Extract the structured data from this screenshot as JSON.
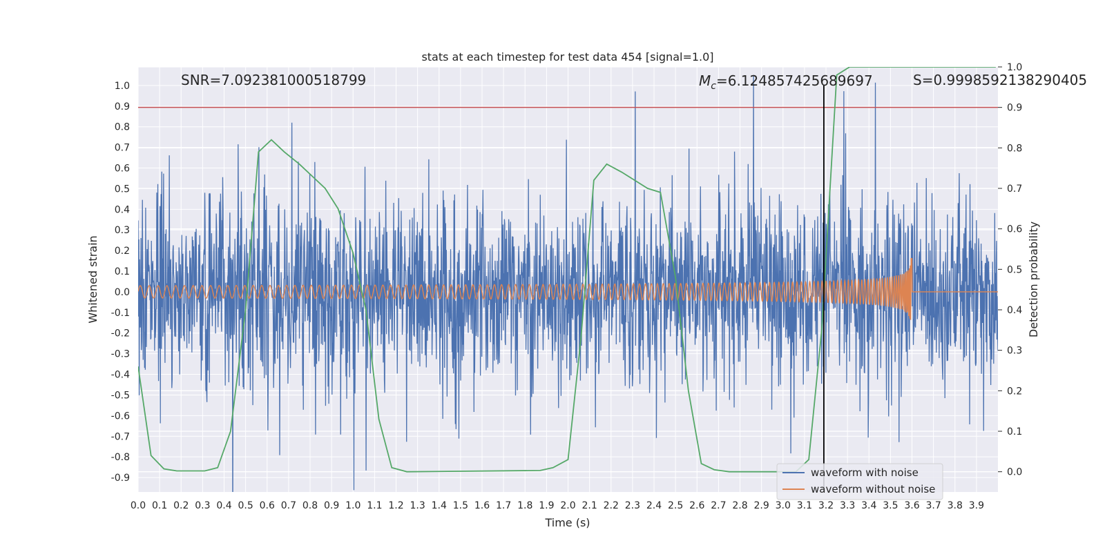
{
  "chart_data": {
    "type": "line",
    "title": "stats at each timestep for test data 454 [signal=1.0]",
    "xlabel": "Time (s)",
    "ylabel": "Whitened strain",
    "y2label": "Detection probability",
    "xlim": [
      0.0,
      4.0
    ],
    "ylim": [
      -0.97,
      1.09
    ],
    "y2lim": [
      -0.05,
      1.0
    ],
    "xticks": [
      "0.0",
      "0.1",
      "0.2",
      "0.3",
      "0.4",
      "0.5",
      "0.6",
      "0.7",
      "0.8",
      "0.9",
      "1.0",
      "1.1",
      "1.2",
      "1.3",
      "1.4",
      "1.5",
      "1.6",
      "1.7",
      "1.8",
      "1.9",
      "2.0",
      "2.1",
      "2.2",
      "2.3",
      "2.4",
      "2.5",
      "2.6",
      "2.7",
      "2.8",
      "2.9",
      "3.0",
      "3.1",
      "3.2",
      "3.3",
      "3.4",
      "3.5",
      "3.6",
      "3.7",
      "3.8",
      "3.9"
    ],
    "yticks": [
      "-0.9",
      "-0.8",
      "-0.7",
      "-0.6",
      "-0.5",
      "-0.4",
      "-0.3",
      "-0.2",
      "-0.1",
      "0.0",
      "0.1",
      "0.2",
      "0.3",
      "0.4",
      "0.5",
      "0.6",
      "0.7",
      "0.8",
      "0.9",
      "1.0"
    ],
    "y2ticks": [
      "0.0",
      "0.1",
      "0.2",
      "0.3",
      "0.4",
      "0.5",
      "0.6",
      "0.7",
      "0.8",
      "0.9",
      "1.0"
    ],
    "annotations": {
      "snr": "SNR=7.092381000518799",
      "mc_symbol": "M",
      "mc_sub": "c",
      "mc_value": "=6.124857425689697",
      "s": "S=0.9998592138290405"
    },
    "series": [
      {
        "name": "waveform with noise",
        "color": "#4c72b0",
        "axis": "left",
        "kind": "noise",
        "noise_sigma": 0.22,
        "noise_seed": 454
      },
      {
        "name": "waveform without noise",
        "color": "#dd8452",
        "axis": "left",
        "kind": "chirp",
        "merger_time": 3.6,
        "f_start": 24,
        "amp_start": 0.03,
        "amp_peak": 0.2
      },
      {
        "name": "Detection probability",
        "color": "#55a868",
        "axis": "right",
        "x": [
          0.0,
          0.06,
          0.12,
          0.18,
          0.25,
          0.31,
          0.37,
          0.43,
          0.5,
          0.56,
          0.62,
          0.68,
          0.75,
          0.81,
          0.87,
          0.93,
          1.0,
          1.06,
          1.12,
          1.18,
          1.25,
          1.87,
          1.93,
          2.0,
          2.06,
          2.12,
          2.18,
          2.25,
          2.31,
          2.37,
          2.43,
          2.5,
          2.56,
          2.62,
          2.68,
          2.75,
          3.06,
          3.12,
          3.18,
          3.25,
          3.31,
          3.37,
          3.9,
          3.99
        ],
        "y": [
          0.26,
          0.04,
          0.007,
          0.002,
          0.002,
          0.002,
          0.01,
          0.1,
          0.4,
          0.79,
          0.82,
          0.79,
          0.76,
          0.73,
          0.7,
          0.65,
          0.54,
          0.4,
          0.13,
          0.01,
          0.0,
          0.003,
          0.01,
          0.03,
          0.33,
          0.72,
          0.76,
          0.74,
          0.72,
          0.7,
          0.69,
          0.48,
          0.2,
          0.02,
          0.005,
          0.0,
          0.0,
          0.03,
          0.35,
          0.98,
          1.0,
          1.0,
          1.0,
          1.0
        ]
      },
      {
        "name": "threshold",
        "color": "#c44e52",
        "axis": "right",
        "kind": "hline",
        "value": 0.9
      },
      {
        "name": "detection time",
        "color": "#000000",
        "axis": "left",
        "kind": "vline",
        "value": 3.19
      }
    ],
    "legend": {
      "location": "lower-right",
      "entries": [
        "waveform with noise",
        "waveform without noise"
      ]
    },
    "grid": true,
    "colors": {
      "background": "#eaeaf2",
      "grid": "#ffffff"
    }
  }
}
